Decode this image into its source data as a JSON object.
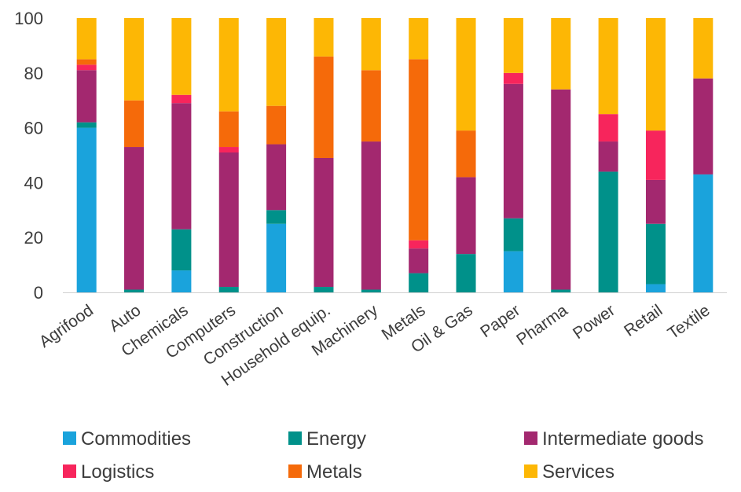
{
  "chart_data": {
    "type": "bar",
    "stacked": true,
    "title": "",
    "xlabel": "",
    "ylabel": "",
    "ylim": [
      0,
      100
    ],
    "yticks": [
      0,
      20,
      40,
      60,
      80,
      100
    ],
    "grid": false,
    "legend_position": "bottom",
    "categories": [
      "Agrifood",
      "Auto",
      "Chemicals",
      "Computers",
      "Construction",
      "Household equip.",
      "Machinery",
      "Metals",
      "Oil & Gas",
      "Paper",
      "Pharma",
      "Power",
      "Retail",
      "Textile"
    ],
    "series": [
      {
        "name": "Commodities",
        "color": "#1aa3dc",
        "values": [
          60,
          0,
          8,
          0,
          25,
          0,
          0,
          0,
          0,
          15,
          0,
          0,
          3,
          43
        ]
      },
      {
        "name": "Energy",
        "color": "#00918a",
        "values": [
          2,
          1,
          15,
          2,
          5,
          2,
          1,
          7,
          14,
          12,
          1,
          44,
          22,
          0
        ]
      },
      {
        "name": "Intermediate goods",
        "color": "#a3286f",
        "values": [
          19,
          52,
          46,
          49,
          24,
          47,
          54,
          9,
          28,
          49,
          73,
          11,
          16,
          35
        ]
      },
      {
        "name": "Logistics",
        "color": "#f7255c",
        "values": [
          2,
          0,
          3,
          2,
          0,
          0,
          0,
          3,
          0,
          4,
          0,
          10,
          18,
          0
        ]
      },
      {
        "name": "Metals",
        "color": "#f56a0a",
        "values": [
          2,
          17,
          0,
          13,
          14,
          37,
          26,
          66,
          17,
          0,
          0,
          0,
          0,
          0
        ]
      },
      {
        "name": "Services",
        "color": "#fdb705",
        "values": [
          15,
          30,
          28,
          34,
          32,
          14,
          19,
          15,
          41,
          20,
          26,
          35,
          41,
          22
        ]
      }
    ]
  }
}
